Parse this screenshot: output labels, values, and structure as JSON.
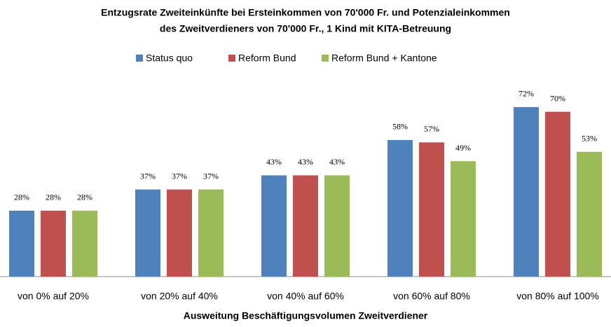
{
  "chart_data": {
    "type": "bar",
    "title": [
      "Entzugsrate Zweiteinkünfte bei Ersteinkommen von  70'000 Fr. und Potenzialeinkommen",
      "des Zweitverdieners von 70'000 Fr., 1 Kind mit KITA-Betreuung"
    ],
    "x_label": "Ausweitung Beschäftigungsvolumen Zweitverdiener",
    "categories": [
      "von 0% auf 20%",
      "von 20% auf 40%",
      "von 40% auf 60%",
      "von 60% auf 80%",
      "von 80% auf 100%"
    ],
    "series": [
      {
        "name": "Status quo",
        "color": "#4f81bd",
        "values": [
          28,
          37,
          43,
          58,
          72
        ],
        "value_labels": [
          "28%",
          "37%",
          "43%",
          "58%",
          "72%"
        ]
      },
      {
        "name": "Reform Bund",
        "color": "#c0504d",
        "values": [
          28,
          37,
          43,
          57,
          70
        ],
        "value_labels": [
          "28%",
          "37%",
          "43%",
          "57%",
          "70%"
        ]
      },
      {
        "name": "Reform Bund + Kantone",
        "color": "#9bbb59",
        "values": [
          28,
          37,
          43,
          49,
          53
        ],
        "value_labels": [
          "28%",
          "37%",
          "43%",
          "49%",
          "53%"
        ]
      }
    ],
    "ylim": [
      0,
      80
    ],
    "legend": "top"
  }
}
